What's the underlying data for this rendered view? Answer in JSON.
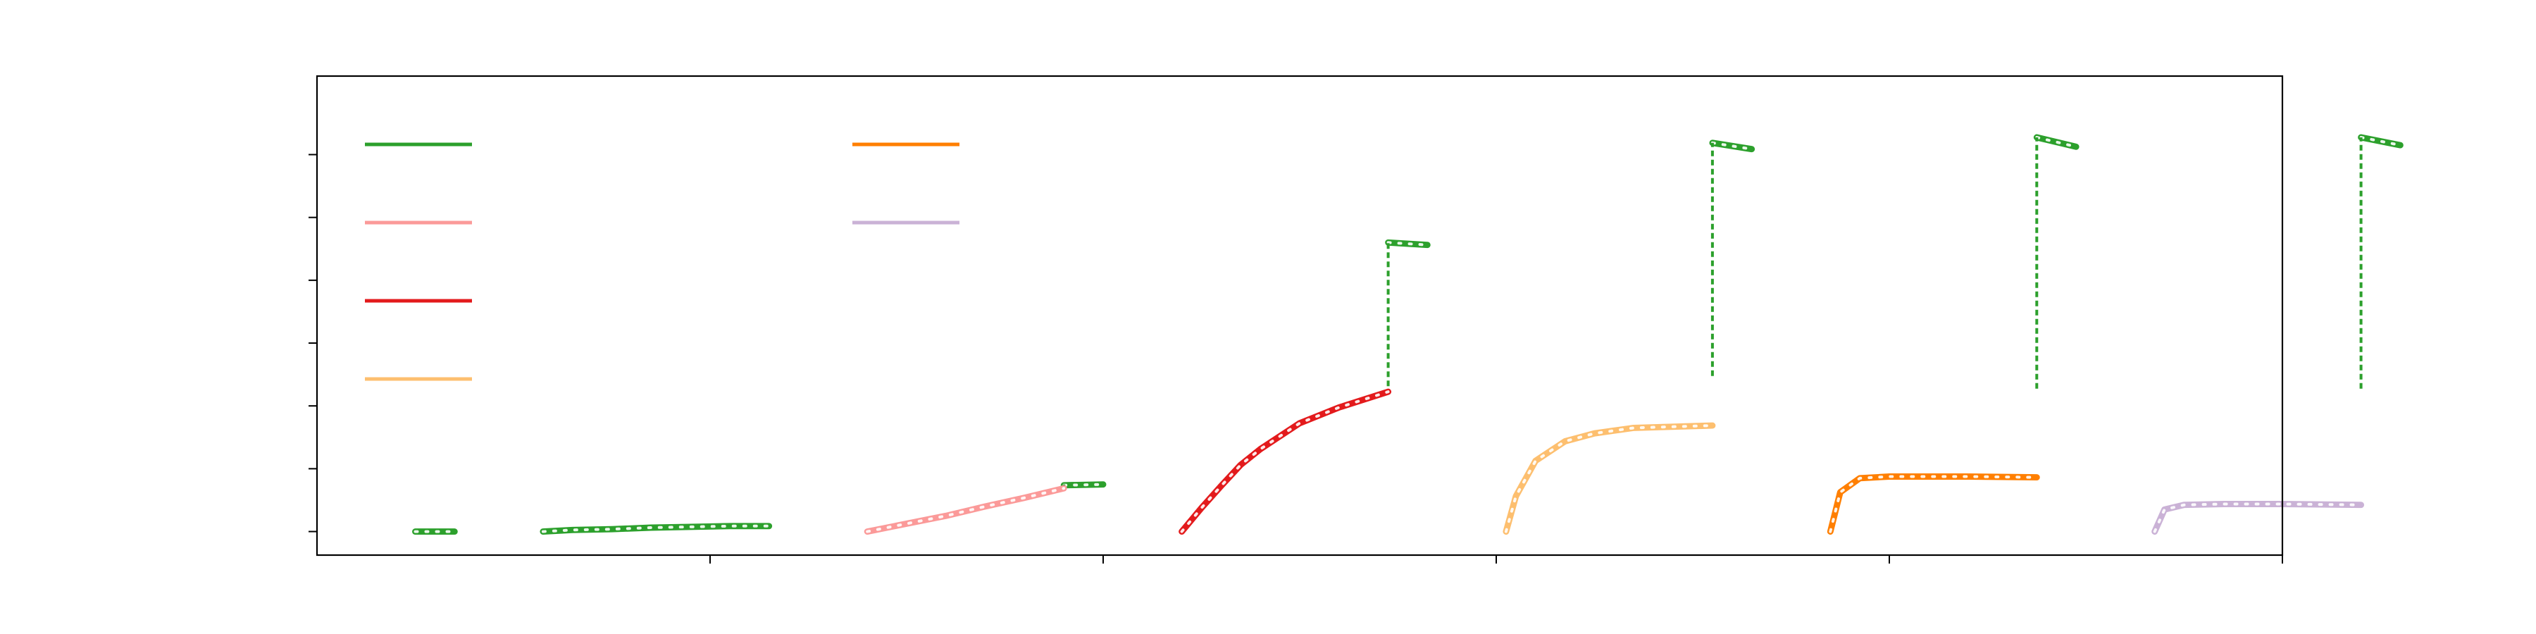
{
  "chart_data": {
    "type": "line",
    "title": "",
    "xlabel": "",
    "ylabel": "",
    "xlim": [
      0,
      100
    ],
    "ylim": [
      -0.3,
      5.8
    ],
    "xticks": [
      20,
      40,
      60,
      80,
      100
    ],
    "yticks": [
      0,
      0.8,
      1.6,
      2.4,
      3.2,
      4.0,
      4.8
    ],
    "grid": false,
    "legend_position": "top-left",
    "legend_columns": 2,
    "band_width": 0.08,
    "series": [
      {
        "key": "green",
        "color": "#2ca02c",
        "dashed_bands": true,
        "points": [
          [
            5,
            0
          ],
          [
            7,
            0
          ],
          null,
          [
            11.5,
            0
          ],
          [
            13,
            0.02
          ],
          [
            15,
            0.03
          ],
          [
            17,
            0.05
          ],
          [
            19,
            0.06
          ],
          [
            21,
            0.07
          ],
          [
            23,
            0.07
          ],
          null,
          [
            38,
            0.59
          ],
          [
            40,
            0.6
          ],
          null,
          [
            54.5,
            3.68
          ],
          [
            56.5,
            3.65
          ],
          null,
          [
            71,
            4.95
          ],
          [
            73,
            4.87
          ],
          null,
          [
            87.5,
            5.02
          ],
          [
            89.5,
            4.9
          ],
          null,
          [
            104,
            5.02
          ],
          [
            106,
            4.92
          ]
        ],
        "verticals": [
          {
            "x": 38,
            "y1": 0.58,
            "y2": 0.6
          },
          {
            "x": 54.5,
            "y1": 1.85,
            "y2": 3.68
          },
          {
            "x": 71,
            "y1": 1.98,
            "y2": 4.95
          },
          {
            "x": 87.5,
            "y1": 1.82,
            "y2": 5.02
          },
          {
            "x": 104,
            "y1": 1.82,
            "y2": 5.02
          }
        ]
      },
      {
        "key": "pink",
        "color": "#fb9a99",
        "dashed_bands": false,
        "points": [
          [
            28,
            0
          ],
          [
            30,
            0.1
          ],
          [
            32,
            0.2
          ],
          [
            34,
            0.32
          ],
          [
            36,
            0.43
          ],
          [
            38,
            0.55
          ]
        ]
      },
      {
        "key": "red",
        "color": "#e31a1c",
        "dashed_bands": false,
        "points": [
          [
            44,
            0
          ],
          [
            45,
            0.3
          ],
          [
            46,
            0.58
          ],
          [
            47,
            0.85
          ],
          [
            48,
            1.05
          ],
          [
            50,
            1.38
          ],
          [
            52,
            1.58
          ],
          [
            54.5,
            1.78
          ]
        ]
      },
      {
        "key": "light-orange",
        "color": "#fdbf6f",
        "dashed_bands": false,
        "points": [
          [
            60.5,
            0
          ],
          [
            61,
            0.45
          ],
          [
            62,
            0.9
          ],
          [
            63.5,
            1.15
          ],
          [
            65,
            1.25
          ],
          [
            67,
            1.32
          ],
          [
            71,
            1.35
          ]
        ]
      },
      {
        "key": "orange",
        "color": "#ff7f00",
        "dashed_bands": false,
        "points": [
          [
            77,
            0
          ],
          [
            77.5,
            0.5
          ],
          [
            78.5,
            0.68
          ],
          [
            80,
            0.7
          ],
          [
            84,
            0.7
          ],
          [
            87.5,
            0.69
          ]
        ]
      },
      {
        "key": "lavender",
        "color": "#cab2d6",
        "dashed_bands": false,
        "points": [
          [
            93.5,
            0
          ],
          [
            94,
            0.28
          ],
          [
            95,
            0.34
          ],
          [
            97,
            0.35
          ],
          [
            100,
            0.35
          ],
          [
            104,
            0.34
          ]
        ]
      }
    ],
    "legend": [
      {
        "color": "#2ca02c",
        "label": ""
      },
      {
        "color": "#fb9a99",
        "label": ""
      },
      {
        "color": "#e31a1c",
        "label": ""
      },
      {
        "color": "#fdbf6f",
        "label": ""
      },
      {
        "color": "#ff7f00",
        "label": ""
      },
      {
        "color": "#cab2d6",
        "label": ""
      }
    ]
  }
}
